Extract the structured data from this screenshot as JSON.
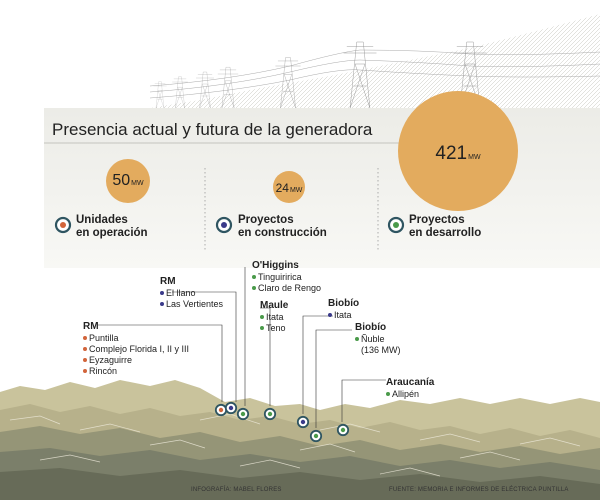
{
  "title": "Presencia actual y futura de la generadora",
  "circles": {
    "operation": {
      "value": "50",
      "unit": "MW"
    },
    "construction": {
      "value": "24",
      "unit": "MW"
    },
    "development": {
      "value": "421",
      "unit": "MW"
    }
  },
  "categories": {
    "operation": {
      "line1": "Unidades",
      "line2": "en operación"
    },
    "construction": {
      "line1": "Proyectos",
      "line2": "en construcción"
    },
    "development": {
      "line1": "Proyectos",
      "line2": "en desarrollo"
    }
  },
  "regions": {
    "rm_top": {
      "name": "RM",
      "items": [
        "El llano",
        "Las Vertientes"
      ]
    },
    "rm_left": {
      "name": "RM",
      "items": [
        "Puntilla",
        "Complejo Florida I, II y III",
        "Eyzaguirre",
        "Rincón"
      ]
    },
    "ohiggins": {
      "name": "O'Higgins",
      "items": [
        "Tinguiririca",
        "Claro de Rengo"
      ]
    },
    "maule": {
      "name": "Maule",
      "items": [
        "Itata",
        "Teno"
      ]
    },
    "biobio1": {
      "name": "Biobío",
      "items": [
        "Itata"
      ]
    },
    "biobio2": {
      "name": "Biobío",
      "items": [
        "Ñuble",
        "(136 MW)"
      ]
    },
    "araucania": {
      "name": "Araucanía",
      "items": [
        "Allipén"
      ]
    }
  },
  "footer": {
    "left": "INFOGRAFÍA: MABEL FLORES",
    "right": "FUENTE: MEMORIA E INFORMES DE ELÉCTRICA PUNTILLA"
  },
  "colors": {
    "circle_fill": "#e3ab5e",
    "panel": "#f1f1ed",
    "terrain_light": "#c9c39c",
    "terrain_dark": "#7b7f6a",
    "marker_operation": "#d2643a",
    "marker_construction": "#3a3a8a",
    "marker_development": "#4a9a4a",
    "marker_ring": "#2f5561"
  }
}
